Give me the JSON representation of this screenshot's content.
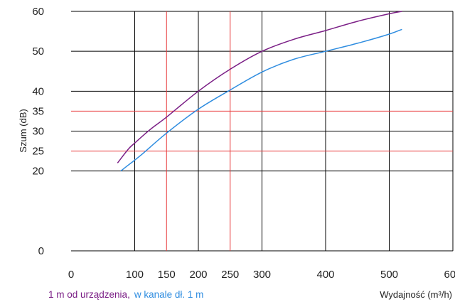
{
  "chart_data": {
    "type": "line",
    "xlabel": "Wydajność (m³/h)",
    "ylabel": "Szum (dB)",
    "xlim": [
      0,
      600
    ],
    "ylim": [
      0,
      60
    ],
    "grid": true,
    "x_ticks": [
      0,
      100,
      150,
      200,
      250,
      300,
      400,
      500,
      600
    ],
    "y_ticks": [
      0,
      20,
      25,
      30,
      35,
      40,
      50,
      60
    ],
    "x_gridlines": [
      100,
      200,
      300,
      400,
      500
    ],
    "y_gridlines": [
      20,
      30,
      40,
      50,
      60
    ],
    "reference_lines": {
      "color": "#e8383a",
      "x": [
        150,
        250
      ],
      "y": [
        25,
        35
      ]
    },
    "series": [
      {
        "name": "1 m od urządzenia,",
        "color": "#7b1f86",
        "points": [
          [
            73,
            22
          ],
          [
            90,
            25.5
          ],
          [
            100,
            27
          ],
          [
            125,
            30.5
          ],
          [
            150,
            33.5
          ],
          [
            200,
            40
          ],
          [
            250,
            45.5
          ],
          [
            300,
            50
          ],
          [
            350,
            53
          ],
          [
            400,
            55.2
          ],
          [
            450,
            57.5
          ],
          [
            500,
            59.4
          ],
          [
            520,
            60
          ]
        ]
      },
      {
        "name": "w kanale dł. 1 m",
        "color": "#2f8de0",
        "points": [
          [
            78,
            20
          ],
          [
            90,
            21.5
          ],
          [
            110,
            24
          ],
          [
            150,
            29.5
          ],
          [
            200,
            35.5
          ],
          [
            250,
            40.3
          ],
          [
            300,
            44.8
          ],
          [
            350,
            48
          ],
          [
            400,
            50
          ],
          [
            450,
            52
          ],
          [
            500,
            54.3
          ],
          [
            520,
            55.5
          ]
        ]
      }
    ],
    "legend_placement": "bottom-left"
  }
}
